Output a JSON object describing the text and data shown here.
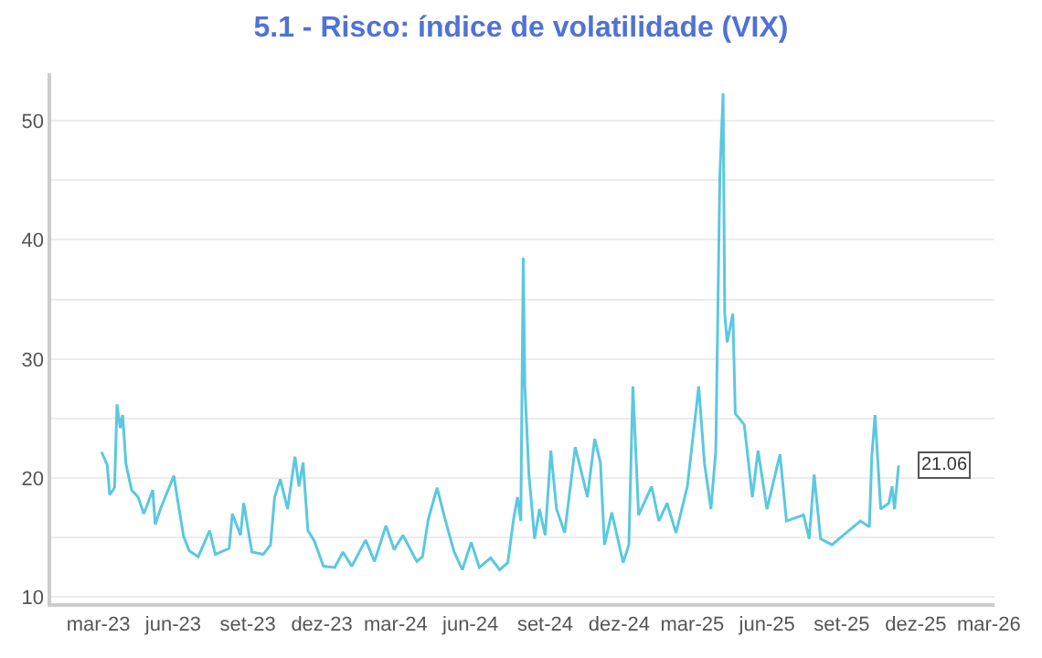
{
  "chart_data": {
    "type": "line",
    "title": "5.1 - Risco: índice de volatilidade (VIX)",
    "x": [
      "2023-03-05",
      "2023-03-12",
      "2023-03-15",
      "2023-03-21",
      "2023-03-24",
      "2023-03-28",
      "2023-03-31",
      "2023-04-04",
      "2023-04-11",
      "2023-04-19",
      "2023-04-26",
      "2023-05-07",
      "2023-05-10",
      "2023-05-17",
      "2023-06-02",
      "2023-06-07",
      "2023-06-14",
      "2023-06-21",
      "2023-07-02",
      "2023-07-16",
      "2023-07-23",
      "2023-08-09",
      "2023-08-13",
      "2023-08-23",
      "2023-08-27",
      "2023-09-06",
      "2023-09-20",
      "2023-09-29",
      "2023-10-04",
      "2023-10-11",
      "2023-10-20",
      "2023-10-29",
      "2023-11-03",
      "2023-11-08",
      "2023-11-14",
      "2023-11-22",
      "2023-12-03",
      "2023-12-17",
      "2023-12-27",
      "2024-01-07",
      "2024-01-24",
      "2024-02-04",
      "2024-02-18",
      "2024-02-28",
      "2024-03-10",
      "2024-03-27",
      "2024-04-03",
      "2024-04-10",
      "2024-04-21",
      "2024-05-01",
      "2024-05-12",
      "2024-05-22",
      "2024-06-02",
      "2024-06-12",
      "2024-06-26",
      "2024-07-07",
      "2024-07-17",
      "2024-07-24",
      "2024-07-29",
      "2024-08-02",
      "2024-08-05",
      "2024-08-07",
      "2024-08-12",
      "2024-08-19",
      "2024-08-25",
      "2024-09-01",
      "2024-09-08",
      "2024-09-15",
      "2024-09-25",
      "2024-10-08",
      "2024-10-16",
      "2024-10-23",
      "2024-11-01",
      "2024-11-08",
      "2024-11-13",
      "2024-11-22",
      "2024-12-06",
      "2024-12-13",
      "2024-12-18",
      "2024-12-25",
      "2025-01-10",
      "2025-01-19",
      "2025-01-29",
      "2025-02-09",
      "2025-02-23",
      "2025-03-09",
      "2025-03-16",
      "2025-03-24",
      "2025-03-30",
      "2025-04-04",
      "2025-04-08",
      "2025-04-10",
      "2025-04-13",
      "2025-04-20",
      "2025-04-23",
      "2025-05-04",
      "2025-05-14",
      "2025-05-21",
      "2025-06-01",
      "2025-06-17",
      "2025-06-25",
      "2025-07-16",
      "2025-07-23",
      "2025-07-29",
      "2025-08-06",
      "2025-08-20",
      "2025-09-03",
      "2025-09-24",
      "2025-10-05",
      "2025-10-08",
      "2025-10-12",
      "2025-10-19",
      "2025-10-29",
      "2025-11-02",
      "2025-11-05",
      "2025-11-10"
    ],
    "series": [
      {
        "color": "#5bc8e0",
        "values": [
          22.2,
          21.1,
          18.6,
          19.2,
          26.2,
          24.2,
          25.3,
          21.2,
          19.0,
          18.4,
          17.0,
          19.0,
          16.1,
          17.5,
          20.2,
          18.0,
          15.1,
          13.9,
          13.4,
          15.6,
          13.6,
          14.1,
          17.0,
          15.2,
          17.9,
          13.8,
          13.6,
          14.4,
          18.4,
          19.9,
          17.4,
          21.8,
          19.3,
          21.3,
          15.6,
          14.7,
          12.6,
          12.5,
          13.8,
          12.6,
          14.8,
          13.0,
          16.0,
          14.0,
          15.2,
          13.0,
          13.4,
          16.5,
          19.2,
          16.5,
          13.8,
          12.3,
          14.6,
          12.5,
          13.3,
          12.3,
          12.9,
          16.5,
          18.4,
          16.4,
          38.5,
          27.7,
          20.3,
          14.9,
          17.4,
          15.2,
          22.3,
          17.4,
          15.4,
          22.6,
          20.4,
          18.4,
          23.3,
          21.3,
          14.4,
          17.1,
          12.9,
          14.4,
          27.7,
          16.9,
          19.3,
          16.4,
          17.9,
          15.4,
          19.3,
          27.7,
          21.3,
          17.4,
          22.3,
          45.4,
          52.3,
          33.8,
          31.4,
          33.8,
          25.4,
          24.5,
          18.4,
          22.3,
          17.4,
          22.0,
          16.4,
          16.9,
          14.9,
          20.3,
          14.9,
          14.4,
          15.2,
          16.4,
          15.9,
          21.8,
          25.3,
          17.4,
          17.9,
          19.3,
          17.4,
          21.06
        ]
      }
    ],
    "annotations": [
      {
        "text": "21.06",
        "x": "2025-11-10",
        "y": 21.06
      }
    ],
    "xlim": [
      "2023-01-02",
      "2026-03-08"
    ],
    "xticks": [
      {
        "value": "2023-03-01",
        "label": "mar-23"
      },
      {
        "value": "2023-06-01",
        "label": "jun-23"
      },
      {
        "value": "2023-09-01",
        "label": "set-23"
      },
      {
        "value": "2023-12-01",
        "label": "dez-23"
      },
      {
        "value": "2024-03-01",
        "label": "mar-24"
      },
      {
        "value": "2024-06-01",
        "label": "jun-24"
      },
      {
        "value": "2024-09-01",
        "label": "set-24"
      },
      {
        "value": "2024-12-01",
        "label": "dez-24"
      },
      {
        "value": "2025-03-01",
        "label": "mar-25"
      },
      {
        "value": "2025-06-01",
        "label": "jun-25"
      },
      {
        "value": "2025-09-01",
        "label": "set-25"
      },
      {
        "value": "2025-12-01",
        "label": "dez-25"
      },
      {
        "value": "2026-03-01",
        "label": "mar-26"
      }
    ],
    "ylim": [
      9.5,
      54
    ],
    "yticks": [
      10,
      {
        "value": 15,
        "label": null
      },
      20,
      {
        "value": 25,
        "label": null
      },
      30,
      {
        "value": 35,
        "label": null
      },
      40,
      {
        "value": 45,
        "label": null
      },
      50
    ],
    "grid": "y",
    "marker": "none",
    "line_style": "solid"
  }
}
